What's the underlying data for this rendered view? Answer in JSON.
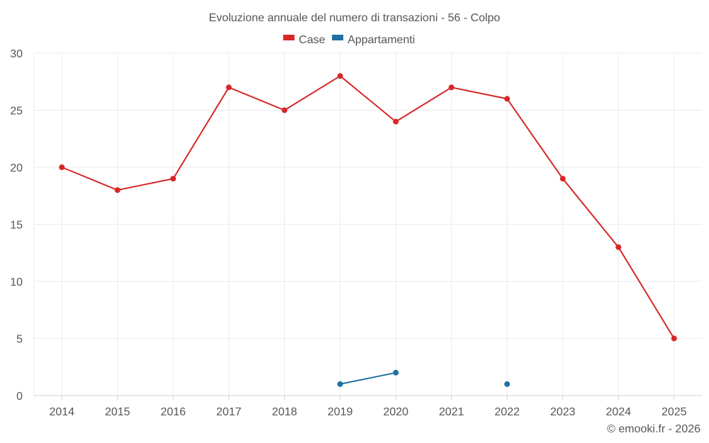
{
  "chart_data": {
    "type": "line",
    "title": "Evoluzione annuale del numero di transazioni - 56 - Colpo",
    "categories": [
      "2014",
      "2015",
      "2016",
      "2017",
      "2018",
      "2019",
      "2020",
      "2021",
      "2022",
      "2023",
      "2024",
      "2025"
    ],
    "ylim": [
      0,
      30
    ],
    "yticks": [
      0,
      5,
      10,
      15,
      20,
      25,
      30
    ],
    "grid": true,
    "legend_position": "top-center",
    "series": [
      {
        "name": "Case",
        "color": "#d62728",
        "values": [
          20,
          18,
          19,
          27,
          25,
          28,
          24,
          27,
          26,
          19,
          13,
          5
        ]
      },
      {
        "name": "Appartamenti",
        "color": "#1f6fa3",
        "values": [
          null,
          null,
          null,
          null,
          null,
          1,
          2,
          null,
          1,
          null,
          null,
          null
        ]
      }
    ]
  },
  "credit": "© emooki.fr - 2026"
}
